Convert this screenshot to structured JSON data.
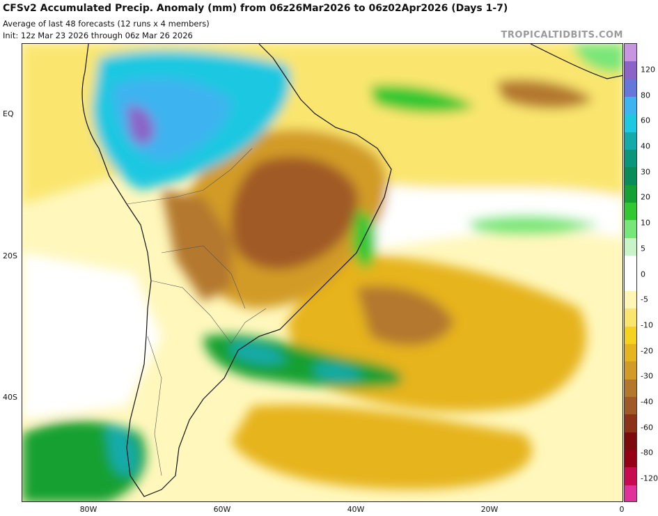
{
  "header": {
    "title": "CFSv2 Accumulated Precip. Anomaly (mm) from 06z26Mar2026 to 06z02Apr2026 (Days 1-7)",
    "subtitle_1": "Average of last 48 forecasts (12 runs x 4 members)",
    "subtitle_2": "Init: 12z Mar 23 2026 through 06z Mar 26 2026",
    "watermark": "TROPICALTIDBITS.COM"
  },
  "map": {
    "lat_labels": [
      "EQ",
      "20S",
      "40S"
    ],
    "lon_labels": [
      "80W",
      "60W",
      "40W",
      "20W",
      "0"
    ],
    "land_color": "#e6e6e6"
  },
  "colorbar": {
    "colors": [
      "#e13299",
      "#c80a50",
      "#960014",
      "#7d0a0a",
      "#8c3219",
      "#a05a28",
      "#b4782d",
      "#d29b28",
      "#e6b41e",
      "#f5d21e",
      "#fae66e",
      "#fff5b4",
      "#ffffff",
      "#ffffff",
      "#c8f5c8",
      "#78e678",
      "#32c832",
      "#14a032",
      "#0a8c5a",
      "#0a967d",
      "#14aaaa",
      "#1ec8e1",
      "#3cb4f0",
      "#6478dc",
      "#8c64c8",
      "#c896e1"
    ],
    "labels": [
      "120",
      "80",
      "60",
      "40",
      "30",
      "20",
      "10",
      "5",
      "0",
      "-5",
      "-10",
      "-20",
      "-30",
      "-40",
      "-60",
      "-80",
      "-120"
    ]
  }
}
